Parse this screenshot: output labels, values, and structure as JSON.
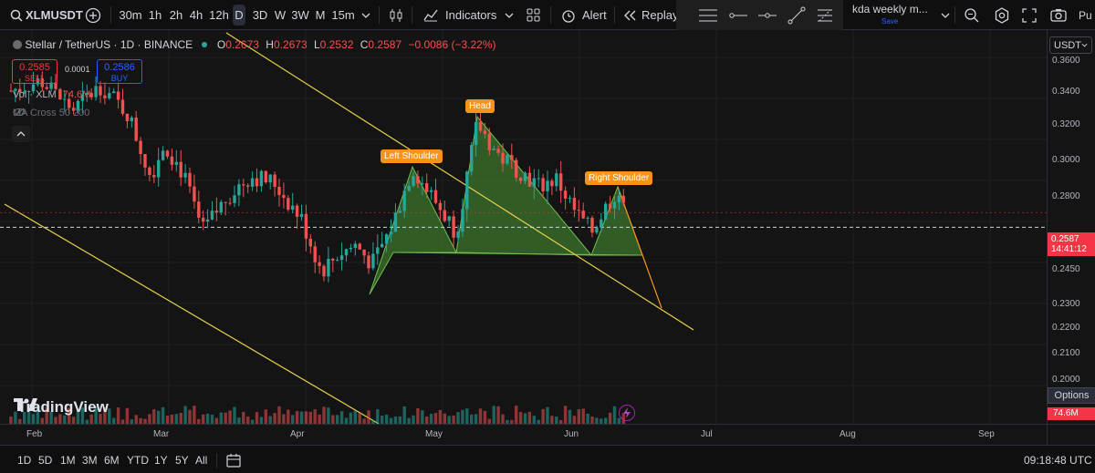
{
  "toolbar": {
    "symbol": "XLMUSDT",
    "intervals": [
      "30m",
      "1h",
      "2h",
      "4h",
      "12h",
      "D",
      "3D",
      "W",
      "3W",
      "M",
      "15m"
    ],
    "selected_interval": "D",
    "indicators_label": "Indicators",
    "alert_label": "Alert",
    "replay_label": "Replay",
    "layout_name": "kda weekly m...",
    "layout_status": "Save"
  },
  "legend": {
    "title": "Stellar / TetherUS · 1D · BINANCE",
    "open_label": "O",
    "open": "0.2673",
    "high_label": "H",
    "high": "0.2673",
    "low_label": "L",
    "low": "0.2532",
    "close_label": "C",
    "close": "0.2587",
    "change": "−0.0086 (−3.22%)",
    "sell_price": "0.2585",
    "sell_label": "SELL",
    "spread": "0.0001",
    "buy_price": "0.2586",
    "buy_label": "BUY",
    "volume_label": "Vol · XLM",
    "volume_value": "74.6M",
    "ma_cross_label": "MA Cross 50 200"
  },
  "pattern_labels": {
    "left_shoulder": "Left Shoulder",
    "head": "Head",
    "right_shoulder": "Right Shoulder"
  },
  "price_axis": {
    "currency": "USDT",
    "ticks": [
      "0.3600",
      "0.3400",
      "0.3200",
      "0.3000",
      "0.2800",
      "0.2450",
      "0.2300",
      "0.2200",
      "0.2100",
      "0.2000"
    ],
    "current_price": "0.2587",
    "countdown": "14:41:12",
    "volume_badge": "74.6M",
    "options_label": "Options"
  },
  "time_axis": {
    "labels": [
      "Feb",
      "Mar",
      "Apr",
      "May",
      "Jun",
      "Jul",
      "Aug",
      "Sep"
    ]
  },
  "bottom": {
    "ranges": [
      "1D",
      "5D",
      "1M",
      "3M",
      "6M",
      "YTD",
      "1Y",
      "5Y",
      "All"
    ],
    "clock": "09:18:48 UTC"
  },
  "watermark": "TradingView",
  "colors": {
    "bull": "#26a69a",
    "bear": "#ef5350",
    "trendline": "#e8d34d",
    "pattern_fill": "#3f7a2c",
    "pattern_label": "#f7931a",
    "price_badge": "#f23645"
  }
}
